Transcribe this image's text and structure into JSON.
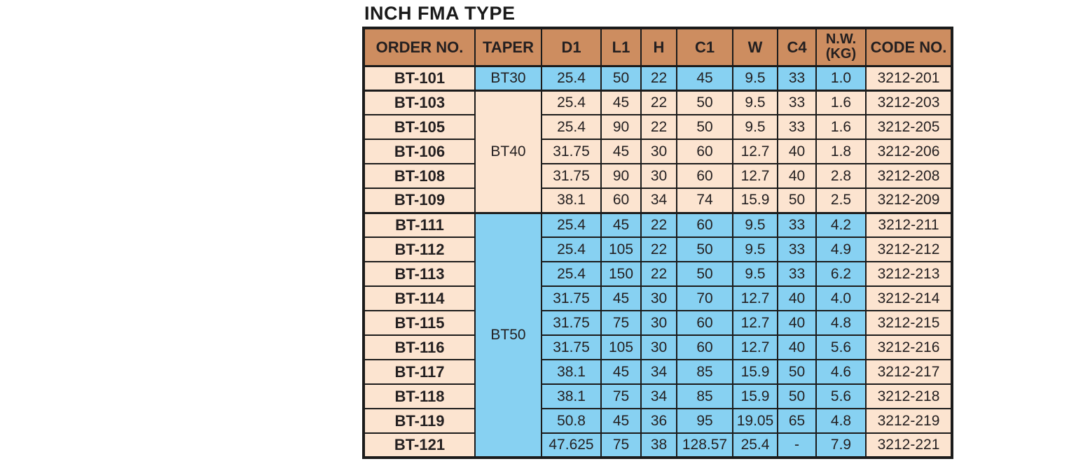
{
  "page": {
    "title": "INCH FMA TYPE"
  },
  "colors": {
    "header_bg": "#cd8d60",
    "peach_bg": "#fce4d0",
    "blue_bg": "#87d1f2",
    "border": "#1b1b1b",
    "text": "#231f20",
    "page_bg": "#ffffff"
  },
  "table": {
    "columns": [
      {
        "label": "ORDER NO."
      },
      {
        "label": "TAPER"
      },
      {
        "label": "D1"
      },
      {
        "label": "L1"
      },
      {
        "label": "H"
      },
      {
        "label": "C1"
      },
      {
        "label": "W"
      },
      {
        "label": "C4"
      },
      {
        "label": "N.W.\n(KG)"
      },
      {
        "label": "CODE NO."
      }
    ],
    "groups": [
      {
        "taper": "BT30",
        "color": "blue",
        "rows": [
          {
            "order": "BT-101",
            "values": [
              "25.4",
              "50",
              "22",
              "45",
              "9.5",
              "33",
              "1.0"
            ],
            "code": "3212-201"
          }
        ]
      },
      {
        "taper": "BT40",
        "color": "peach",
        "rows": [
          {
            "order": "BT-103",
            "values": [
              "25.4",
              "45",
              "22",
              "50",
              "9.5",
              "33",
              "1.6"
            ],
            "code": "3212-203"
          },
          {
            "order": "BT-105",
            "values": [
              "25.4",
              "90",
              "22",
              "50",
              "9.5",
              "33",
              "1.6"
            ],
            "code": "3212-205"
          },
          {
            "order": "BT-106",
            "values": [
              "31.75",
              "45",
              "30",
              "60",
              "12.7",
              "40",
              "1.8"
            ],
            "code": "3212-206"
          },
          {
            "order": "BT-108",
            "values": [
              "31.75",
              "90",
              "30",
              "60",
              "12.7",
              "40",
              "2.8"
            ],
            "code": "3212-208"
          },
          {
            "order": "BT-109",
            "values": [
              "38.1",
              "60",
              "34",
              "74",
              "15.9",
              "50",
              "2.5"
            ],
            "code": "3212-209"
          }
        ]
      },
      {
        "taper": "BT50",
        "color": "blue",
        "rows": [
          {
            "order": "BT-111",
            "values": [
              "25.4",
              "45",
              "22",
              "60",
              "9.5",
              "33",
              "4.2"
            ],
            "code": "3212-211"
          },
          {
            "order": "BT-112",
            "values": [
              "25.4",
              "105",
              "22",
              "50",
              "9.5",
              "33",
              "4.9"
            ],
            "code": "3212-212"
          },
          {
            "order": "BT-113",
            "values": [
              "25.4",
              "150",
              "22",
              "50",
              "9.5",
              "33",
              "6.2"
            ],
            "code": "3212-213"
          },
          {
            "order": "BT-114",
            "values": [
              "31.75",
              "45",
              "30",
              "70",
              "12.7",
              "40",
              "4.0"
            ],
            "code": "3212-214"
          },
          {
            "order": "BT-115",
            "values": [
              "31.75",
              "75",
              "30",
              "60",
              "12.7",
              "40",
              "4.8"
            ],
            "code": "3212-215"
          },
          {
            "order": "BT-116",
            "values": [
              "31.75",
              "105",
              "30",
              "60",
              "12.7",
              "40",
              "5.6"
            ],
            "code": "3212-216"
          },
          {
            "order": "BT-117",
            "values": [
              "38.1",
              "45",
              "34",
              "85",
              "15.9",
              "50",
              "4.6"
            ],
            "code": "3212-217"
          },
          {
            "order": "BT-118",
            "values": [
              "38.1",
              "75",
              "34",
              "85",
              "15.9",
              "50",
              "5.6"
            ],
            "code": "3212-218"
          },
          {
            "order": "BT-119",
            "values": [
              "50.8",
              "45",
              "36",
              "95",
              "19.05",
              "65",
              "4.8"
            ],
            "code": "3212-219"
          },
          {
            "order": "BT-121",
            "values": [
              "47.625",
              "75",
              "38",
              "128.57",
              "25.4",
              "-",
              "7.9"
            ],
            "code": "3212-221"
          }
        ]
      }
    ]
  }
}
